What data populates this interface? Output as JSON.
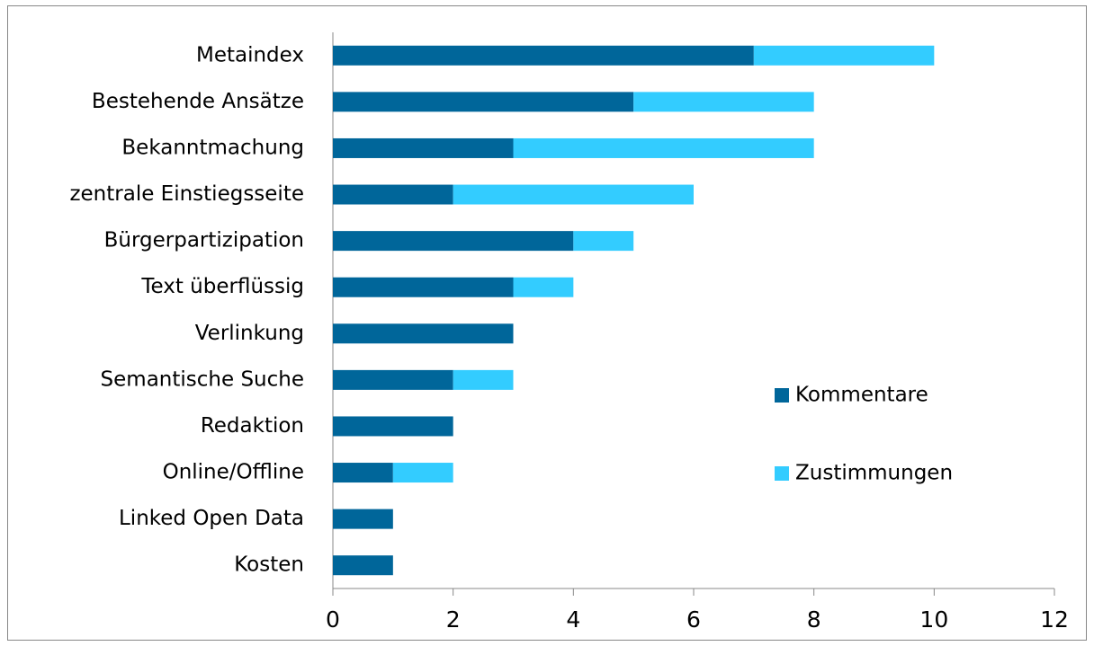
{
  "chart_data": {
    "type": "bar",
    "orientation": "horizontal",
    "stacked": true,
    "categories": [
      "Metaindex",
      "Bestehende Ansätze",
      "Bekanntmachung",
      "zentrale Einstiegsseite",
      "Bürgerpartizipation",
      "Text überflüssig",
      "Verlinkung",
      "Semantische Suche",
      "Redaktion",
      "Online/Offline",
      "Linked Open Data",
      "Kosten"
    ],
    "series": [
      {
        "name": "Kommentare",
        "color": "#00669a",
        "values": [
          7,
          5,
          3,
          2,
          4,
          3,
          3,
          2,
          2,
          1,
          1,
          1
        ]
      },
      {
        "name": "Zustimmungen",
        "color": "#33ccff",
        "values": [
          3,
          3,
          5,
          4,
          1,
          1,
          0,
          1,
          0,
          1,
          0,
          0
        ]
      }
    ],
    "xlim": [
      0,
      12
    ],
    "xticks": [
      0,
      2,
      4,
      6,
      8,
      10,
      12
    ],
    "grid": false,
    "legend": "right"
  }
}
